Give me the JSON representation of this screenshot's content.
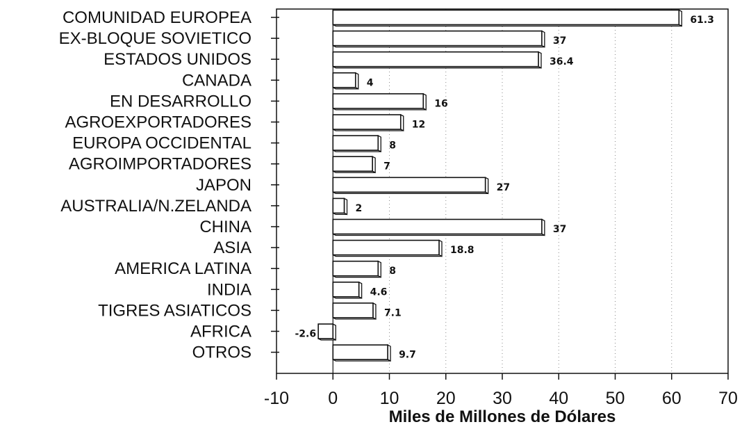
{
  "chart_data": {
    "type": "bar",
    "orientation": "horizontal",
    "categories": [
      "COMUNIDAD EUROPEA",
      "EX-BLOQUE SOVIETICO",
      "ESTADOS UNIDOS",
      "CANADA",
      "EN DESARROLLO",
      "AGROEXPORTADORES",
      "EUROPA OCCIDENTAL",
      "AGROIMPORTADORES",
      "JAPON",
      "AUSTRALIA/N.ZELANDA",
      "CHINA",
      "ASIA",
      "AMERICA LATINA",
      "INDIA",
      "TIGRES ASIATICOS",
      "AFRICA",
      "OTROS"
    ],
    "values": [
      61.3,
      37,
      36.4,
      4,
      16,
      12,
      8,
      7,
      27,
      2,
      37,
      18.8,
      8,
      4.6,
      7.1,
      -2.6,
      9.7
    ],
    "value_labels": [
      "61.3",
      "37",
      "36.4",
      "4",
      "16",
      "12",
      "8",
      "7",
      "27",
      "2",
      "37",
      "18.8",
      "8",
      "4.6",
      "7.1",
      "-2.6",
      "9.7"
    ],
    "title": "",
    "xlabel": "Miles de Millones de Dólares",
    "ylabel": "",
    "xlim": [
      -10,
      70
    ],
    "xticks": [
      -10,
      0,
      10,
      20,
      30,
      40,
      50,
      60,
      70
    ],
    "xtick_labels": [
      "-10",
      "0",
      "10",
      "20",
      "30",
      "40",
      "50",
      "60",
      "70"
    ],
    "grid": "vertical dotted",
    "bar_style": "3d-outline"
  }
}
